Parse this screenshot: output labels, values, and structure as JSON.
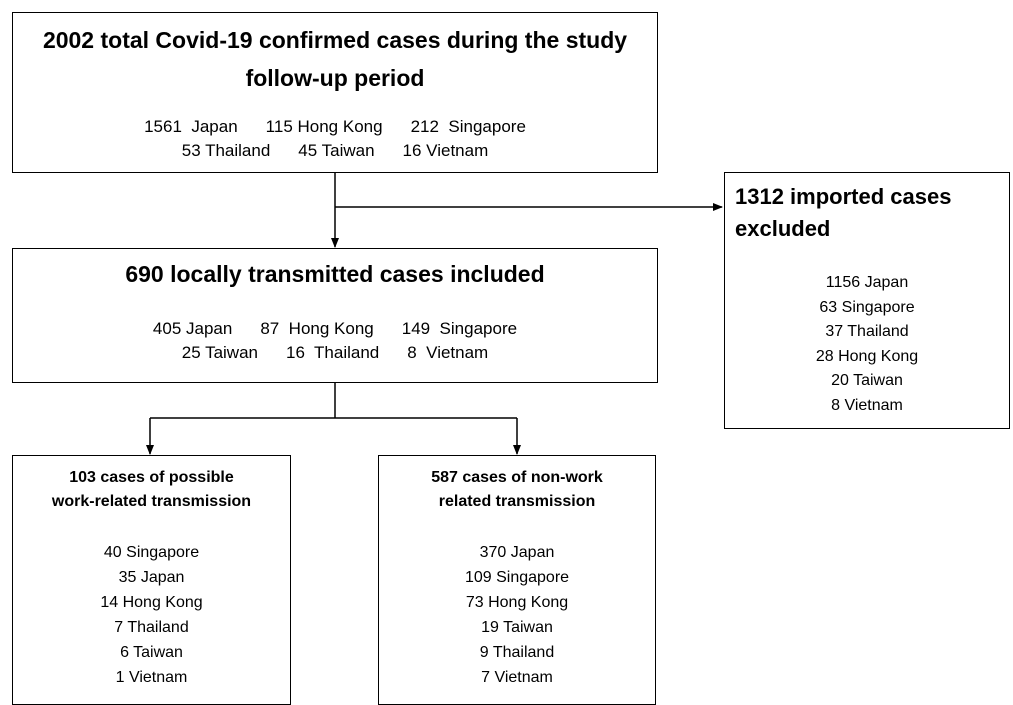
{
  "boxes": [
    {
      "title_lines": [
        "2002 total Covid-19 confirmed cases during the study",
        "follow-up period"
      ],
      "rows": [
        [
          "1561  Japan",
          "115 Hong Kong",
          "212  Singapore"
        ],
        [
          "53 Thailand",
          "45 Taiwan",
          "16 Vietnam"
        ]
      ]
    },
    {
      "title_lines": [
        "690 locally transmitted cases included"
      ],
      "rows": [
        [
          "405 Japan",
          "87  Hong Kong",
          "149  Singapore"
        ],
        [
          "25 Taiwan",
          "16  Thailand",
          "8  Vietnam"
        ]
      ]
    },
    {
      "title_lines": [
        "1312 imported cases",
        "excluded"
      ],
      "rows": [
        [
          "1156 Japan"
        ],
        [
          "63 Singapore"
        ],
        [
          "37 Thailand"
        ],
        [
          "28 Hong Kong"
        ],
        [
          "20 Taiwan"
        ],
        [
          "8 Vietnam"
        ]
      ]
    },
    {
      "title_lines": [
        "103 cases of possible",
        "work-related transmission"
      ],
      "rows": [
        [
          "40 Singapore"
        ],
        [
          "35 Japan"
        ],
        [
          "14 Hong Kong"
        ],
        [
          "7 Thailand"
        ],
        [
          "6 Taiwan"
        ],
        [
          "1 Vietnam"
        ]
      ]
    },
    {
      "title_lines": [
        "587 cases of non-work",
        "related transmission"
      ],
      "rows": [
        [
          "370 Japan"
        ],
        [
          "109 Singapore"
        ],
        [
          "73 Hong Kong"
        ],
        [
          "19 Taiwan"
        ],
        [
          "9 Thailand"
        ],
        [
          "7 Vietnam"
        ]
      ]
    }
  ]
}
